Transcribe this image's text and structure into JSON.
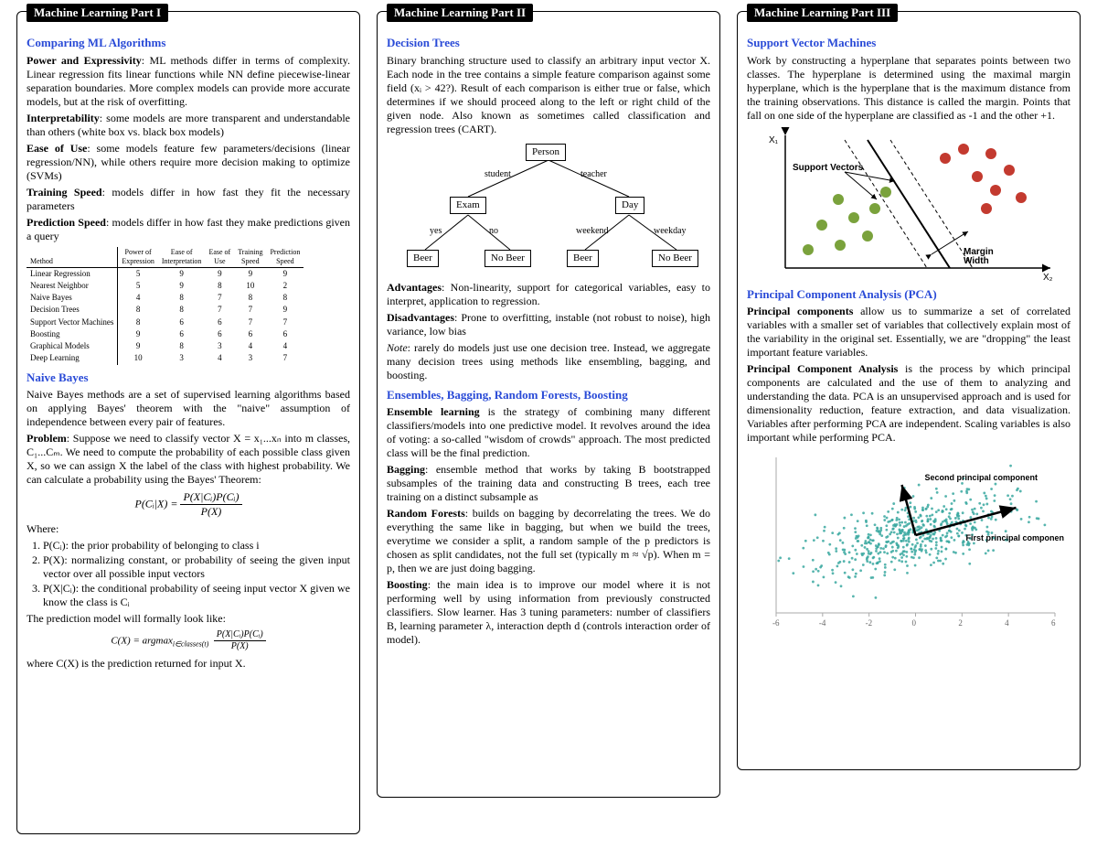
{
  "col1": {
    "title": "Machine Learning Part I",
    "sec1": "Comparing ML Algorithms",
    "power": "Power and Expressivity",
    "power_txt": ": ML methods differ in terms of complexity. Linear regression fits linear functions while NN define piecewise-linear separation boundaries. More complex models can provide more accurate models, but at the risk of overfitting.",
    "interp": "Interpretability",
    "interp_txt": ": some models are more transparent and understandable than others (white box vs. black box models)",
    "ease": "Ease of Use",
    "ease_txt": ": some models feature few parameters/decisions (linear regression/NN), while others require more decision making to optimize (SVMs)",
    "tspeed": "Training Speed",
    "tspeed_txt": ": models differ in how fast they fit the necessary parameters",
    "pspeed": "Prediction Speed",
    "pspeed_txt": ": models differ in how fast they make predictions given a query",
    "tbl": {
      "head": [
        "Method",
        "Power of Expression",
        "Ease of Interpretation",
        "Ease of Use",
        "Training Speed",
        "Prediction Speed"
      ],
      "rows": [
        [
          "Linear Regression",
          "5",
          "9",
          "9",
          "9",
          "9"
        ],
        [
          "Nearest Neighbor",
          "5",
          "9",
          "8",
          "10",
          "2"
        ],
        [
          "Naive Bayes",
          "4",
          "8",
          "7",
          "8",
          "8"
        ],
        [
          "Decision Trees",
          "8",
          "8",
          "7",
          "7",
          "9"
        ],
        [
          "Support Vector Machines",
          "8",
          "6",
          "6",
          "7",
          "7"
        ],
        [
          "Boosting",
          "9",
          "6",
          "6",
          "6",
          "6"
        ],
        [
          "Graphical Models",
          "9",
          "8",
          "3",
          "4",
          "4"
        ],
        [
          "Deep Learning",
          "10",
          "3",
          "4",
          "3",
          "7"
        ]
      ]
    },
    "sec2": "Naive Bayes",
    "nb1": "Naive Bayes methods are a set of supervised learning algorithms based on applying Bayes' theorem with the \"naive\" assumption of independence between every pair of features.",
    "prob": "Problem",
    "prob_txt": ": Suppose we need to classify vector X = x₁...xₙ into m classes, C₁...Cₘ. We need to compute the probability of each possible class given X, so we can assign X the label of the class with highest probability. We can calculate a probability using the Bayes' Theorem:",
    "eq1_lhs": "P(Cᵢ|X) = ",
    "eq1_num": "P(X|Cᵢ)P(Cᵢ)",
    "eq1_den": "P(X)",
    "where": "Where:",
    "li1": "P(Cᵢ): the prior probability of belonging to class i",
    "li2": "P(X): normalizing constant, or probability of seeing the given input vector over all possible input vectors",
    "li3": "P(X|Cᵢ): the conditional probability of seeing input vector X given we know the class is Cᵢ",
    "pred": "The prediction model will formally look like:",
    "eq2_lhs": "C(X) = argmax",
    "eq2_sub": "i∈classes(t)",
    "eq2_num": "P(X|Cᵢ)P(Cᵢ)",
    "eq2_den": "P(X)",
    "pred2": "where C(X) is the prediction returned for input X."
  },
  "col2": {
    "title": "Machine Learning Part II",
    "sec1": "Decision Trees",
    "dt1": "Binary branching structure used to classify an arbitrary input vector X. Each node in the tree contains a simple feature comparison against some field (xᵢ > 42?). Result of each comparison is either true or false, which determines if we should proceed along to the left or right child of the given node. Also known as sometimes called classification and regression trees (CART).",
    "tree": {
      "root": "Person",
      "l": "Exam",
      "r": "Day",
      "ll": "Beer",
      "lr": "No Beer",
      "rl": "Beer",
      "rr": "No Beer",
      "e1": "student",
      "e2": "teacher",
      "e3": "yes",
      "e4": "no",
      "e5": "weekend",
      "e6": "weekday"
    },
    "adv": "Advantages",
    "adv_txt": ": Non-linearity, support for categorical variables, easy to interpret, application to regression.",
    "dis": "Disadvantages",
    "dis_txt": ": Prone to overfitting, instable (not robust to noise), high variance, low bias",
    "note": "Note",
    "note_txt": ": rarely do models just use one decision tree. Instead, we aggregate many decision trees using methods like ensembling, bagging, and boosting.",
    "sec2": "Ensembles, Bagging, Random Forests, Boosting",
    "ens": "Ensemble learning",
    "ens_txt": " is the strategy of combining many different classifiers/models into one predictive model. It revolves around the idea of voting: a so-called \"wisdom of crowds\" approach. The most predicted class will be the final prediction.",
    "bag": "Bagging",
    "bag_txt": ": ensemble method that works by taking B bootstrapped subsamples of the training data and constructing B trees, each tree training on a distinct subsample as",
    "rf": "Random Forests",
    "rf_txt": ": builds on bagging by decorrelating the trees. We do everything the same like in bagging, but when we build the trees, everytime we consider a split, a random sample of the p predictors is chosen as split candidates, not the full set (typically m ≈ √p). When m = p, then we are just doing bagging.",
    "boost": "Boosting",
    "boost_txt": ": the main idea is to improve our model where it is not performing well by using information from previously constructed classifiers. Slow learner. Has 3 tuning parameters: number of classifiers B, learning parameter λ, interaction depth d (controls interaction order of model)."
  },
  "col3": {
    "title": "Machine Learning Part III",
    "sec1": "Support Vector Machines",
    "svm1": "Work by constructing a hyperplane that separates points between two classes. The hyperplane is determined using the maximal margin hyperplane, which is the hyperplane that is the maximum distance from the training observations. This distance is called the margin. Points that fall on one side of the hyperplane are classified as -1 and the other +1.",
    "svm_fig": {
      "x1": "X₁",
      "x2": "X₂",
      "sv": "Support Vectors",
      "mw": "Margin\nWidth",
      "green": "#7aa23c",
      "red": "#c33a2f",
      "line": "#000000",
      "dash": "#000000"
    },
    "sec2": "Principal Component Analysis (PCA)",
    "pc": "Principal components",
    "pc_txt": " allow us to summarize a set of correlated variables with a smaller set of variables that collectively explain most of the variability in the original set. Essentially, we are \"dropping\" the least important feature variables.",
    "pca": "Principal Component Analysis",
    "pca_txt": " is the process by which principal components are calculated and the use of them to analyzing and understanding the data. PCA is an unsupervised approach and is used for dimensionality reduction, feature extraction, and data visualization. Variables after performing PCA are independent. Scaling variables is also important while performing PCA.",
    "pca_fig": {
      "pt_color": "#3aa8a0",
      "axis_color": "#aaaaaa",
      "ticks": [
        "-6",
        "-4",
        "-2",
        "0",
        "2",
        "4",
        "6"
      ],
      "lbl1": "Second principal component",
      "lbl2": "First principal component"
    }
  }
}
